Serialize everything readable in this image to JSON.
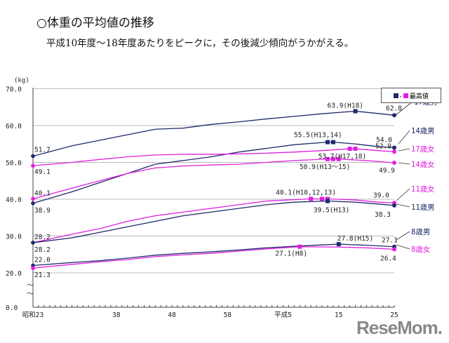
{
  "title": "○体重の平均値の推移",
  "subtitle": "平成10年度～18年度あたりをピークに，その後減少傾向がうかがえる。",
  "legend": {
    "label": "最高値",
    "colors": [
      "#1f2a6b",
      "#e020e0"
    ]
  },
  "watermark": "ReseMom",
  "chart_data": {
    "type": "line",
    "ylabel": "(kg)",
    "ylim": [
      0,
      70
    ],
    "y_break": [
      0,
      20
    ],
    "yticks": [
      "70.0",
      "60.0",
      "50.0",
      "40.0",
      "30.0",
      "20.0",
      "0.0"
    ],
    "ytick_values": [
      70,
      60,
      50,
      40,
      30,
      20,
      0
    ],
    "xlim": [
      1948,
      2013
    ],
    "xtick_labels": [
      "昭和23",
      "38",
      "48",
      "58",
      "平成5",
      "15",
      "25"
    ],
    "xtick_years": [
      1948,
      1963,
      1973,
      1983,
      1993,
      2003,
      2013
    ],
    "grid": true,
    "series": [
      {
        "name": "17歳男",
        "color": "#1f2a6b",
        "x": [
          1948,
          1955,
          1960,
          1965,
          1970,
          1975,
          1980,
          1985,
          1990,
          1995,
          2000,
          2006,
          2010,
          2013
        ],
        "y": [
          51.7,
          54.5,
          56,
          57.5,
          59,
          59.3,
          60.3,
          61,
          61.8,
          62.5,
          63.2,
          63.9,
          63.3,
          62.8
        ],
        "peaks": [
          2006
        ]
      },
      {
        "name": "14歳男",
        "color": "#1f2a6b",
        "x": [
          1948,
          1955,
          1960,
          1965,
          1970,
          1975,
          1980,
          1985,
          1990,
          1995,
          2001,
          2002,
          2006,
          2010,
          2013
        ],
        "y": [
          38.9,
          42,
          44.5,
          47,
          49.5,
          50.5,
          51.5,
          52.8,
          53.8,
          54.8,
          55.5,
          55.5,
          55,
          54.3,
          54.0
        ],
        "peaks": [
          2001,
          2002
        ]
      },
      {
        "name": "17歳女",
        "color": "#e020e0",
        "x": [
          1948,
          1955,
          1960,
          1965,
          1970,
          1975,
          1980,
          1985,
          1990,
          1995,
          2000,
          2005,
          2006,
          2010,
          2013
        ],
        "y": [
          49.1,
          50,
          50.8,
          51.5,
          52,
          52.2,
          52.2,
          52.3,
          52.5,
          52.8,
          53.2,
          53.7,
          53.7,
          53.2,
          52.9
        ],
        "peaks": [
          2005,
          2006
        ]
      },
      {
        "name": "14歳女",
        "color": "#e020e0",
        "x": [
          1948,
          1955,
          1960,
          1965,
          1970,
          1975,
          1980,
          1985,
          1990,
          1995,
          2001,
          2002,
          2003,
          2008,
          2013
        ],
        "y": [
          40.1,
          43,
          45,
          47,
          48.5,
          49,
          49.3,
          49.5,
          50,
          50.5,
          50.9,
          50.9,
          50.9,
          50.5,
          49.9
        ],
        "peaks": [
          2001,
          2002,
          2003
        ]
      },
      {
        "name": "11歳女",
        "color": "#e020e0",
        "x": [
          1948,
          1955,
          1960,
          1965,
          1970,
          1975,
          1980,
          1985,
          1990,
          1998,
          2000,
          2001,
          2006,
          2010,
          2013
        ],
        "y": [
          28.2,
          30.5,
          32,
          34,
          35.5,
          36.5,
          37.5,
          38.5,
          39.5,
          40.1,
          40.1,
          40.1,
          39.8,
          39.2,
          39.0
        ],
        "peaks": [
          1998,
          2000,
          2001
        ]
      },
      {
        "name": "11歳男",
        "color": "#1f2a6b",
        "x": [
          1948,
          1955,
          1960,
          1965,
          1970,
          1975,
          1980,
          1985,
          1990,
          1995,
          2001,
          2006,
          2010,
          2013
        ],
        "y": [
          28.2,
          29.5,
          31,
          32.5,
          34,
          35.5,
          36.5,
          37.5,
          38.5,
          39.2,
          39.5,
          39.2,
          38.7,
          38.3
        ],
        "peaks": [
          2001
        ]
      },
      {
        "name": "8歳男",
        "color": "#1f2a6b",
        "x": [
          1948,
          1955,
          1960,
          1965,
          1970,
          1975,
          1980,
          1985,
          1990,
          1996,
          2003,
          2008,
          2013
        ],
        "y": [
          22.0,
          22.8,
          23.3,
          24,
          24.8,
          25.3,
          25.7,
          26.2,
          26.8,
          27.3,
          27.8,
          27.5,
          27.1
        ],
        "peaks": [
          2003
        ]
      },
      {
        "name": "8歳女",
        "color": "#e020e0",
        "x": [
          1948,
          1955,
          1960,
          1965,
          1970,
          1975,
          1980,
          1985,
          1990,
          1996,
          2003,
          2008,
          2013
        ],
        "y": [
          21.3,
          22.3,
          23,
          23.6,
          24.4,
          24.9,
          25.3,
          25.9,
          26.5,
          27.1,
          27.0,
          26.8,
          26.4
        ],
        "peaks": [
          1996
        ]
      }
    ],
    "annotations": [
      {
        "text": "51.7",
        "x": 1948,
        "y": 51.7
      },
      {
        "text": "49.1",
        "x": 1948,
        "y": 49.1
      },
      {
        "text": "40.1",
        "x": 1948,
        "y": 40.1
      },
      {
        "text": "38.9",
        "x": 1948,
        "y": 38.9
      },
      {
        "text": "28.2",
        "x": 1948,
        "y": 28.2
      },
      {
        "text": "28.2",
        "x": 1948,
        "y": 28.2
      },
      {
        "text": "22.0",
        "x": 1948,
        "y": 22.0
      },
      {
        "text": "21.3",
        "x": 1948,
        "y": 21.3
      },
      {
        "text": "63.9(H18)",
        "x": 2006,
        "y": 63.9
      },
      {
        "text": "62.8",
        "x": 2013,
        "y": 62.8
      },
      {
        "text": "55.5(H13,14)",
        "x": 2001,
        "y": 55.5
      },
      {
        "text": "54.0",
        "x": 2013,
        "y": 54.0
      },
      {
        "text": "53.7(H17,18)",
        "x": 2005,
        "y": 53.7
      },
      {
        "text": "52.9",
        "x": 2013,
        "y": 52.9
      },
      {
        "text": "50.9(H13～15)",
        "x": 2001,
        "y": 50.9
      },
      {
        "text": "49.9",
        "x": 2013,
        "y": 49.9
      },
      {
        "text": "40.1(H10,12,13)",
        "x": 1998,
        "y": 40.1
      },
      {
        "text": "39.0",
        "x": 2013,
        "y": 39.0
      },
      {
        "text": "39.5(H13)",
        "x": 2001,
        "y": 39.5
      },
      {
        "text": "38.3",
        "x": 2013,
        "y": 38.3
      },
      {
        "text": "27.8(H15)",
        "x": 2003,
        "y": 27.8
      },
      {
        "text": "27.1",
        "x": 2013,
        "y": 27.1
      },
      {
        "text": "27.1(H8)",
        "x": 1996,
        "y": 27.1
      },
      {
        "text": "26.4",
        "x": 2013,
        "y": 26.4
      }
    ]
  }
}
